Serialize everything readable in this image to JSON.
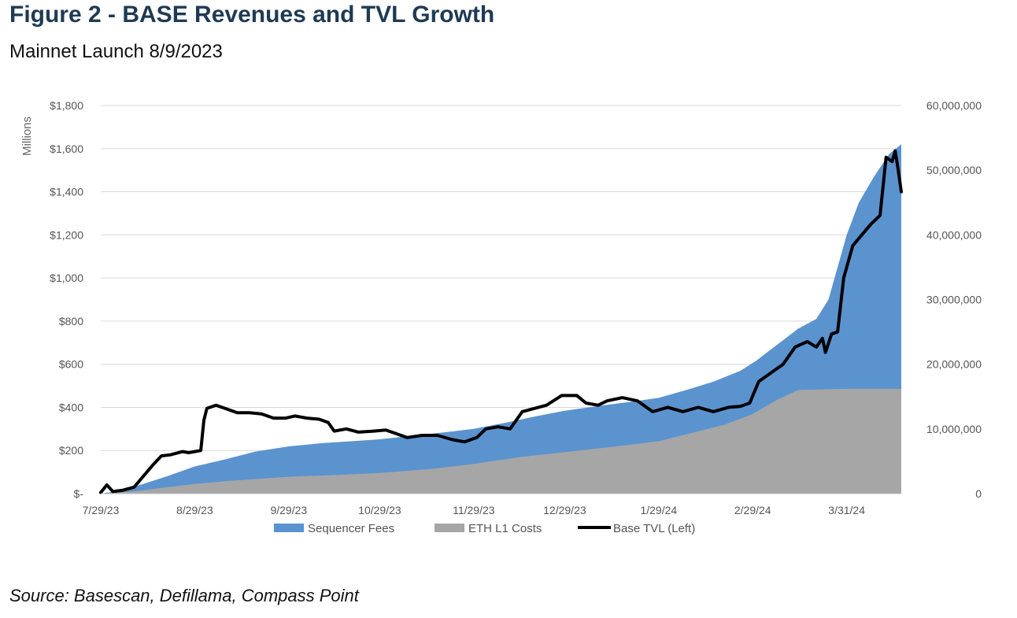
{
  "title": "Figure 2 - BASE Revenues and TVL Growth",
  "subtitle": "Mainnet Launch 8/9/2023",
  "source": "Source: Basescan, Defillama, Compass Point",
  "colors": {
    "sequencer_fees": "#5b93cf",
    "eth_l1_costs": "#a6a6a6",
    "base_tvl": "#000000",
    "grid": "#d9d9d9",
    "title": "#1f3a54"
  },
  "chart_data": {
    "type": "area",
    "left_axis": {
      "label": "Millions",
      "range": [
        0,
        1800
      ],
      "ticks": [
        0,
        200,
        400,
        600,
        800,
        1000,
        1200,
        1400,
        1600,
        1800
      ],
      "tick_labels": [
        "$-",
        "$200",
        "$400",
        "$600",
        "$800",
        "$1,000",
        "$1,200",
        "$1,400",
        "$1,600",
        "$1,800"
      ]
    },
    "right_axis": {
      "range": [
        0,
        60000000
      ],
      "ticks": [
        0,
        10000000,
        20000000,
        30000000,
        40000000,
        50000000,
        60000000
      ],
      "tick_labels": [
        "0",
        "10,000,000",
        "20,000,000",
        "30,000,000",
        "40,000,000",
        "50,000,000",
        "60,000,000"
      ]
    },
    "x_axis": {
      "range": [
        "7/29/23",
        "4/18/24"
      ],
      "tick_dates": [
        "7/29/23",
        "8/29/23",
        "9/29/23",
        "10/29/23",
        "11/29/23",
        "12/29/23",
        "1/29/24",
        "2/29/24",
        "3/31/24"
      ],
      "tick_labels": [
        "7/29/23",
        "8/29/23",
        "9/29/23",
        "10/29/23",
        "11/29/23",
        "12/29/23",
        "1/29/24",
        "2/29/24",
        "3/31/24"
      ]
    },
    "grid": true,
    "legend_position": "bottom",
    "legend": [
      "Sequencer Fees",
      "ETH L1 Costs",
      "Base TVL (Left)"
    ],
    "series": [
      {
        "name": "Sequencer Fees",
        "axis": "right",
        "type": "area",
        "points": [
          [
            "7/29/23",
            0
          ],
          [
            "8/5/23",
            500000
          ],
          [
            "8/12/23",
            1500000
          ],
          [
            "8/20/23",
            2700000
          ],
          [
            "8/29/23",
            4200000
          ],
          [
            "9/8/23",
            5300000
          ],
          [
            "9/18/23",
            6500000
          ],
          [
            "9/29/23",
            7300000
          ],
          [
            "10/10/23",
            7800000
          ],
          [
            "10/20/23",
            8100000
          ],
          [
            "10/29/23",
            8400000
          ],
          [
            "11/10/23",
            9000000
          ],
          [
            "11/20/23",
            9500000
          ],
          [
            "11/29/23",
            10000000
          ],
          [
            "12/10/23",
            11000000
          ],
          [
            "12/20/23",
            12000000
          ],
          [
            "12/29/23",
            12800000
          ],
          [
            "1/10/24",
            13600000
          ],
          [
            "1/20/24",
            14200000
          ],
          [
            "1/29/24",
            14800000
          ],
          [
            "2/7/24",
            16000000
          ],
          [
            "2/16/24",
            17300000
          ],
          [
            "2/25/24",
            19000000
          ],
          [
            "3/1/24",
            20500000
          ],
          [
            "3/8/24",
            23000000
          ],
          [
            "3/15/24",
            25500000
          ],
          [
            "3/21/24",
            27000000
          ],
          [
            "3/25/24",
            30000000
          ],
          [
            "3/28/24",
            35000000
          ],
          [
            "3/31/24",
            40000000
          ],
          [
            "4/4/24",
            45000000
          ],
          [
            "4/9/24",
            49000000
          ],
          [
            "4/14/24",
            52500000
          ],
          [
            "4/18/24",
            54000000
          ]
        ]
      },
      {
        "name": "ETH L1 Costs",
        "axis": "right",
        "type": "area",
        "points": [
          [
            "7/29/23",
            0
          ],
          [
            "8/10/23",
            400000
          ],
          [
            "8/20/23",
            1000000
          ],
          [
            "8/29/23",
            1500000
          ],
          [
            "9/10/23",
            2000000
          ],
          [
            "9/29/23",
            2600000
          ],
          [
            "10/15/23",
            2900000
          ],
          [
            "10/29/23",
            3200000
          ],
          [
            "11/15/23",
            3800000
          ],
          [
            "11/29/23",
            4600000
          ],
          [
            "12/15/23",
            5700000
          ],
          [
            "12/29/23",
            6400000
          ],
          [
            "1/15/24",
            7300000
          ],
          [
            "1/29/24",
            8100000
          ],
          [
            "2/10/24",
            9500000
          ],
          [
            "2/20/24",
            10700000
          ],
          [
            "2/29/24",
            12300000
          ],
          [
            "3/8/24",
            14500000
          ],
          [
            "3/15/24",
            16000000
          ],
          [
            "3/21/24",
            16100000
          ],
          [
            "3/31/24",
            16200000
          ],
          [
            "4/18/24",
            16200000
          ]
        ]
      },
      {
        "name": "Base TVL (Left)",
        "axis": "left",
        "type": "line",
        "points": [
          [
            "7/29/23",
            5
          ],
          [
            "7/31/23",
            40
          ],
          [
            "8/2/23",
            10
          ],
          [
            "8/5/23",
            15
          ],
          [
            "8/9/23",
            30
          ],
          [
            "8/12/23",
            80
          ],
          [
            "8/15/23",
            130
          ],
          [
            "8/18/23",
            175
          ],
          [
            "8/21/23",
            180
          ],
          [
            "8/25/23",
            195
          ],
          [
            "8/27/23",
            190
          ],
          [
            "8/29/23",
            195
          ],
          [
            "8/31/23",
            200
          ],
          [
            "9/1/23",
            340
          ],
          [
            "9/2/23",
            395
          ],
          [
            "9/5/23",
            410
          ],
          [
            "9/8/23",
            395
          ],
          [
            "9/12/23",
            375
          ],
          [
            "9/16/23",
            375
          ],
          [
            "9/20/23",
            370
          ],
          [
            "9/24/23",
            350
          ],
          [
            "9/28/23",
            350
          ],
          [
            "10/1/23",
            360
          ],
          [
            "10/5/23",
            350
          ],
          [
            "10/9/23",
            345
          ],
          [
            "10/12/23",
            330
          ],
          [
            "10/14/23",
            290
          ],
          [
            "10/18/23",
            300
          ],
          [
            "10/22/23",
            285
          ],
          [
            "10/27/23",
            290
          ],
          [
            "10/31/23",
            295
          ],
          [
            "11/3/23",
            280
          ],
          [
            "11/7/23",
            260
          ],
          [
            "11/12/23",
            270
          ],
          [
            "11/17/23",
            270
          ],
          [
            "11/22/23",
            250
          ],
          [
            "11/26/23",
            240
          ],
          [
            "11/30/23",
            260
          ],
          [
            "12/3/23",
            300
          ],
          [
            "12/7/23",
            310
          ],
          [
            "12/11/23",
            300
          ],
          [
            "12/15/23",
            380
          ],
          [
            "12/19/23",
            395
          ],
          [
            "12/23/23",
            410
          ],
          [
            "12/28/23",
            455
          ],
          [
            "1/2/24",
            455
          ],
          [
            "1/5/24",
            420
          ],
          [
            "1/9/24",
            410
          ],
          [
            "1/12/24",
            430
          ],
          [
            "1/17/24",
            445
          ],
          [
            "1/22/24",
            430
          ],
          [
            "1/27/24",
            380
          ],
          [
            "2/1/24",
            400
          ],
          [
            "2/6/24",
            380
          ],
          [
            "2/11/24",
            400
          ],
          [
            "2/16/24",
            380
          ],
          [
            "2/21/24",
            400
          ],
          [
            "2/25/24",
            405
          ],
          [
            "2/28/24",
            420
          ],
          [
            "3/2/24",
            520
          ],
          [
            "3/6/24",
            560
          ],
          [
            "3/10/24",
            600
          ],
          [
            "3/14/24",
            680
          ],
          [
            "3/18/24",
            705
          ],
          [
            "3/21/24",
            680
          ],
          [
            "3/23/24",
            720
          ],
          [
            "3/24/24",
            655
          ],
          [
            "3/26/24",
            740
          ],
          [
            "3/28/24",
            750
          ],
          [
            "3/30/24",
            1000
          ],
          [
            "4/2/24",
            1150
          ],
          [
            "4/5/24",
            1200
          ],
          [
            "4/8/24",
            1250
          ],
          [
            "4/11/24",
            1290
          ],
          [
            "4/13/24",
            1560
          ],
          [
            "4/15/24",
            1540
          ],
          [
            "4/16/24",
            1590
          ],
          [
            "4/17/24",
            1500
          ],
          [
            "4/18/24",
            1400
          ]
        ]
      }
    ]
  }
}
